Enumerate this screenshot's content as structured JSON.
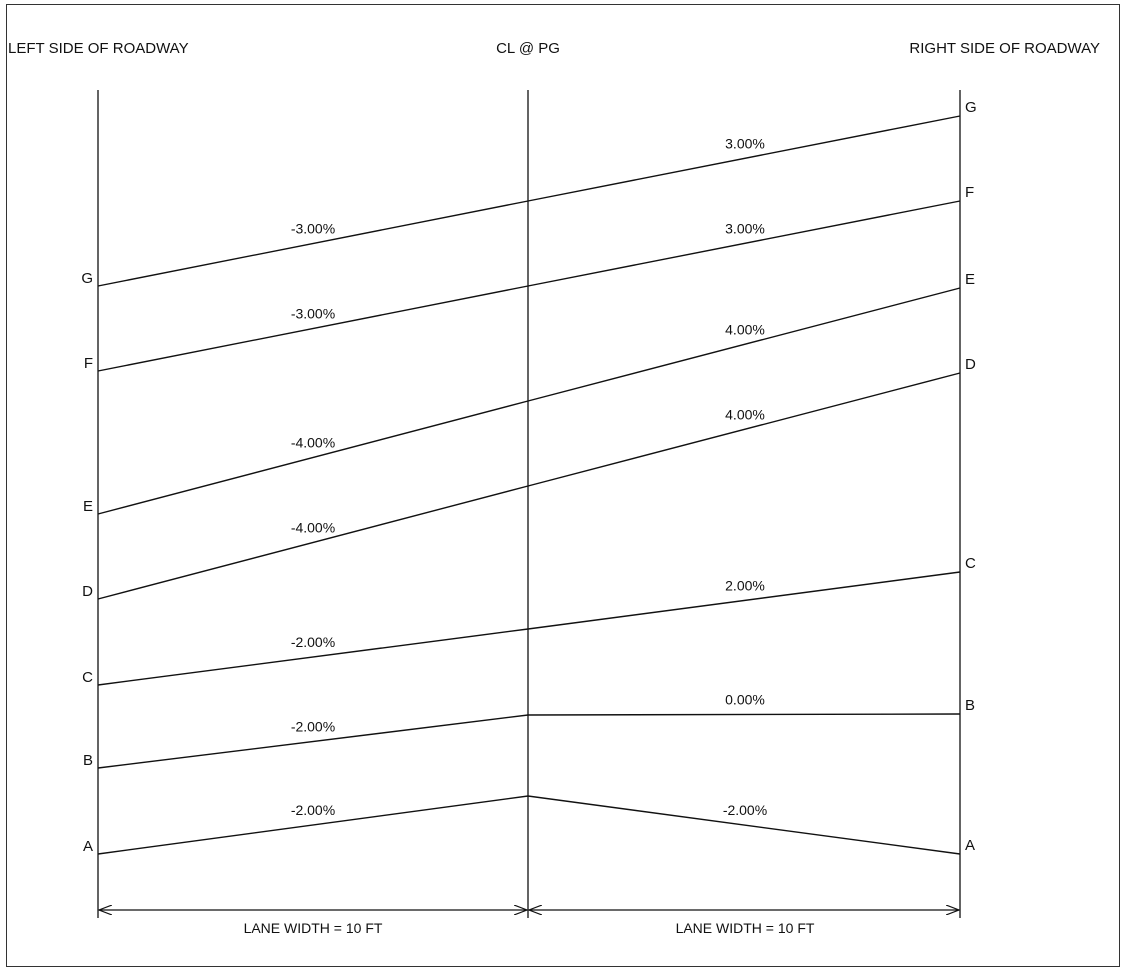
{
  "headers": {
    "left": "LEFT SIDE OF ROADWAY",
    "center": "CL @ PG",
    "right": "RIGHT SIDE OF ROADWAY"
  },
  "dimensions": {
    "left": "LANE WIDTH = 10 FT",
    "right": "LANE WIDTH = 10 FT"
  },
  "stages": [
    {
      "id": "A",
      "left_slope": "-2.00%",
      "right_slope": "-2.00%",
      "left_label": "A",
      "right_label": "A"
    },
    {
      "id": "B",
      "left_slope": "-2.00%",
      "right_slope": "0.00%",
      "left_label": "B",
      "right_label": "B"
    },
    {
      "id": "C",
      "left_slope": "-2.00%",
      "right_slope": "2.00%",
      "left_label": "C",
      "right_label": "C"
    },
    {
      "id": "D",
      "left_slope": "-4.00%",
      "right_slope": "4.00%",
      "left_label": "D",
      "right_label": "D"
    },
    {
      "id": "E",
      "left_slope": "-4.00%",
      "right_slope": "4.00%",
      "left_label": "E",
      "right_label": "E"
    },
    {
      "id": "F",
      "left_slope": "-3.00%",
      "right_slope": "3.00%",
      "left_label": "F",
      "right_label": "F"
    },
    {
      "id": "G",
      "left_slope": "-3.00%",
      "right_slope": "3.00%",
      "left_label": "G",
      "right_label": "G"
    }
  ]
}
